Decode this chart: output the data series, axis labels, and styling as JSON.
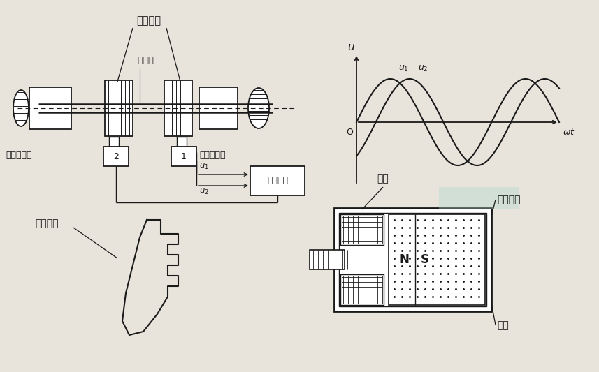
{
  "bg_color": "#e8e4dc",
  "labels": {
    "chi_xing_yuan_pan_top": "齿形圆盘",
    "niu_zhuan_zhou": "扭转轴",
    "ci_dian_chuanganqi_left": "磁电传感器",
    "ci_dian_chuanganqi_right": "磁电传感器",
    "ce_liang_yibiao": "测量仪表",
    "chi_xing_yuan_pan_bottom": "齿形圆盘",
    "xian_quan": "线圈",
    "yong_jiu_ci_tie": "永久磁铁",
    "tie_xin": "铁芯",
    "sensor1": "1",
    "sensor2": "2",
    "u_axis": "u",
    "wt_axis": "ωt",
    "origin": "O",
    "u1_label": "u1",
    "u2_label": "u2",
    "N_label": "N",
    "S_label": "S"
  },
  "line_color": "#1a1a1a",
  "text_color": "#1a1a1a"
}
